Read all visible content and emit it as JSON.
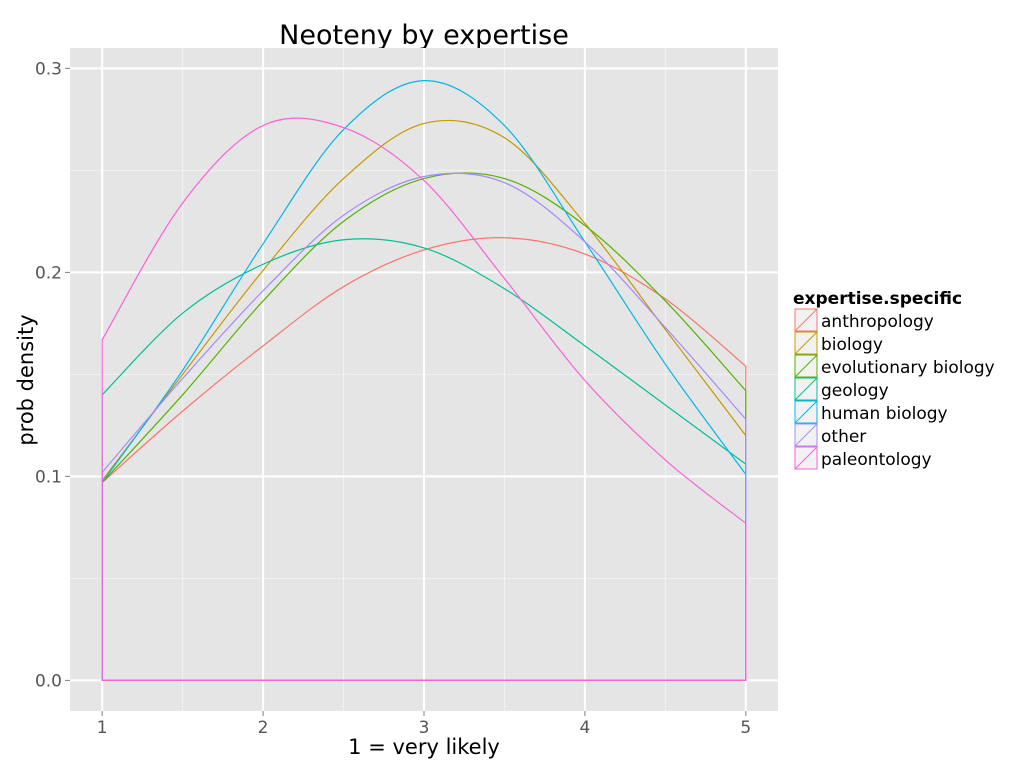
{
  "chart_data": {
    "type": "line",
    "title": "Neoteny  by expertise",
    "xlabel": "1 = very likely",
    "ylabel": "prob density",
    "xlim": [
      0.8,
      5.2
    ],
    "ylim": [
      -0.015,
      0.31
    ],
    "x_ticks": [
      1,
      2,
      3,
      4,
      5
    ],
    "x_tick_labels": [
      "1",
      "2",
      "3",
      "4",
      "5"
    ],
    "y_ticks": [
      0.0,
      0.1,
      0.2,
      0.3
    ],
    "y_tick_labels": [
      "0.0",
      "0.1",
      "0.2",
      "0.3"
    ],
    "grid": true,
    "legend": {
      "title": "expertise.specific",
      "position": "right"
    },
    "x": [
      1.0,
      1.5,
      2.0,
      2.5,
      3.0,
      3.5,
      4.0,
      4.5,
      5.0
    ],
    "series": [
      {
        "name": "anthropology",
        "color": "#F8766D",
        "values": [
          0.097,
          0.132,
          0.164,
          0.193,
          0.211,
          0.217,
          0.209,
          0.187,
          0.154
        ]
      },
      {
        "name": "biology",
        "color": "#C49A00",
        "values": [
          0.098,
          0.15,
          0.201,
          0.246,
          0.273,
          0.266,
          0.224,
          0.172,
          0.12
        ]
      },
      {
        "name": "evolutionary biology",
        "color": "#53B400",
        "values": [
          0.097,
          0.14,
          0.186,
          0.225,
          0.246,
          0.246,
          0.223,
          0.186,
          0.142
        ]
      },
      {
        "name": "geology",
        "color": "#00C094",
        "values": [
          0.14,
          0.18,
          0.204,
          0.216,
          0.212,
          0.192,
          0.164,
          0.135,
          0.106
        ]
      },
      {
        "name": "human biology",
        "color": "#00B6EB",
        "values": [
          0.097,
          0.152,
          0.214,
          0.27,
          0.294,
          0.272,
          0.215,
          0.155,
          0.101
        ]
      },
      {
        "name": "other",
        "color": "#A58AFF",
        "values": [
          0.102,
          0.148,
          0.191,
          0.228,
          0.247,
          0.244,
          0.215,
          0.173,
          0.128
        ]
      },
      {
        "name": "paleontology",
        "color": "#FB61D7",
        "values": [
          0.167,
          0.234,
          0.272,
          0.271,
          0.245,
          0.197,
          0.147,
          0.108,
          0.077
        ]
      }
    ]
  }
}
